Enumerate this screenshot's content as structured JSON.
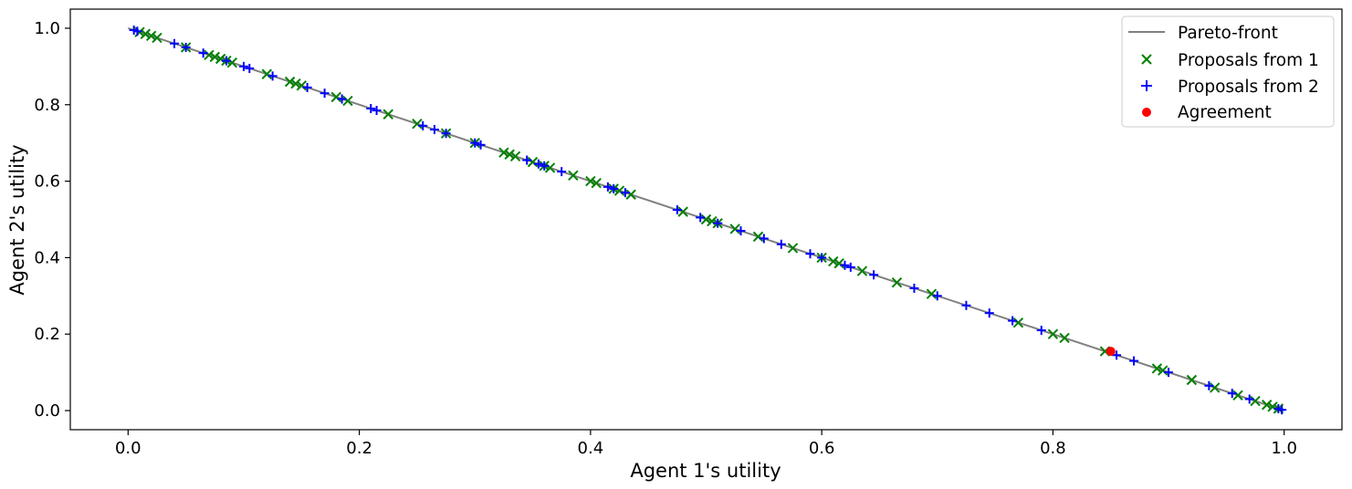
{
  "chart_data": {
    "type": "scatter",
    "xlabel": "Agent 1's utility",
    "ylabel": "Agent 2's utility",
    "xlim": [
      -0.05,
      1.05
    ],
    "ylim": [
      -0.05,
      1.05
    ],
    "x_ticks": [
      "0.0",
      "0.2",
      "0.4",
      "0.6",
      "0.8",
      "1.0"
    ],
    "y_ticks": [
      "0.0",
      "0.2",
      "0.4",
      "0.6",
      "0.8",
      "1.0"
    ],
    "grid": false,
    "legend_position": "top-right",
    "series": [
      {
        "name": "Pareto-front",
        "kind": "line",
        "color": "#808080",
        "x": [
          0.0,
          1.0
        ],
        "y": [
          1.0,
          0.0
        ]
      },
      {
        "name": "Proposals from 1",
        "kind": "scatter",
        "marker": "x",
        "color": "#008000",
        "x": [
          0.01,
          0.015,
          0.02,
          0.025,
          0.05,
          0.07,
          0.075,
          0.08,
          0.085,
          0.09,
          0.12,
          0.14,
          0.145,
          0.15,
          0.18,
          0.19,
          0.225,
          0.25,
          0.275,
          0.3,
          0.325,
          0.33,
          0.335,
          0.35,
          0.36,
          0.365,
          0.385,
          0.4,
          0.405,
          0.42,
          0.425,
          0.435,
          0.48,
          0.5,
          0.505,
          0.51,
          0.525,
          0.545,
          0.575,
          0.6,
          0.61,
          0.615,
          0.635,
          0.665,
          0.695,
          0.77,
          0.8,
          0.81,
          0.845,
          0.89,
          0.895,
          0.92,
          0.94,
          0.96,
          0.975,
          0.985,
          0.99,
          0.995
        ],
        "y": [
          0.99,
          0.985,
          0.98,
          0.975,
          0.95,
          0.93,
          0.925,
          0.92,
          0.915,
          0.91,
          0.88,
          0.86,
          0.855,
          0.85,
          0.82,
          0.81,
          0.775,
          0.75,
          0.725,
          0.7,
          0.675,
          0.67,
          0.665,
          0.65,
          0.64,
          0.635,
          0.615,
          0.6,
          0.595,
          0.58,
          0.575,
          0.565,
          0.52,
          0.5,
          0.495,
          0.49,
          0.475,
          0.455,
          0.425,
          0.4,
          0.39,
          0.385,
          0.365,
          0.335,
          0.305,
          0.23,
          0.2,
          0.19,
          0.155,
          0.11,
          0.105,
          0.08,
          0.06,
          0.04,
          0.025,
          0.015,
          0.01,
          0.005
        ]
      },
      {
        "name": "Proposals from 2",
        "kind": "scatter",
        "marker": "+",
        "color": "#0000ff",
        "x": [
          0.005,
          0.008,
          0.04,
          0.05,
          0.065,
          0.085,
          0.1,
          0.105,
          0.125,
          0.155,
          0.17,
          0.185,
          0.21,
          0.215,
          0.255,
          0.265,
          0.275,
          0.3,
          0.305,
          0.345,
          0.355,
          0.36,
          0.375,
          0.415,
          0.42,
          0.43,
          0.475,
          0.495,
          0.51,
          0.53,
          0.55,
          0.565,
          0.59,
          0.6,
          0.62,
          0.625,
          0.645,
          0.68,
          0.7,
          0.725,
          0.745,
          0.765,
          0.79,
          0.855,
          0.87,
          0.9,
          0.935,
          0.955,
          0.97,
          0.995,
          0.998
        ],
        "y": [
          0.995,
          0.992,
          0.96,
          0.95,
          0.935,
          0.915,
          0.9,
          0.895,
          0.875,
          0.845,
          0.83,
          0.815,
          0.79,
          0.785,
          0.745,
          0.735,
          0.725,
          0.7,
          0.695,
          0.655,
          0.645,
          0.64,
          0.625,
          0.585,
          0.58,
          0.57,
          0.525,
          0.505,
          0.49,
          0.47,
          0.45,
          0.435,
          0.41,
          0.4,
          0.38,
          0.375,
          0.355,
          0.32,
          0.3,
          0.275,
          0.255,
          0.235,
          0.21,
          0.145,
          0.13,
          0.1,
          0.065,
          0.045,
          0.03,
          0.005,
          0.002
        ]
      },
      {
        "name": "Agreement",
        "kind": "scatter",
        "marker": "o",
        "color": "#ff0000",
        "x": [
          0.85
        ],
        "y": [
          0.155
        ]
      }
    ]
  }
}
